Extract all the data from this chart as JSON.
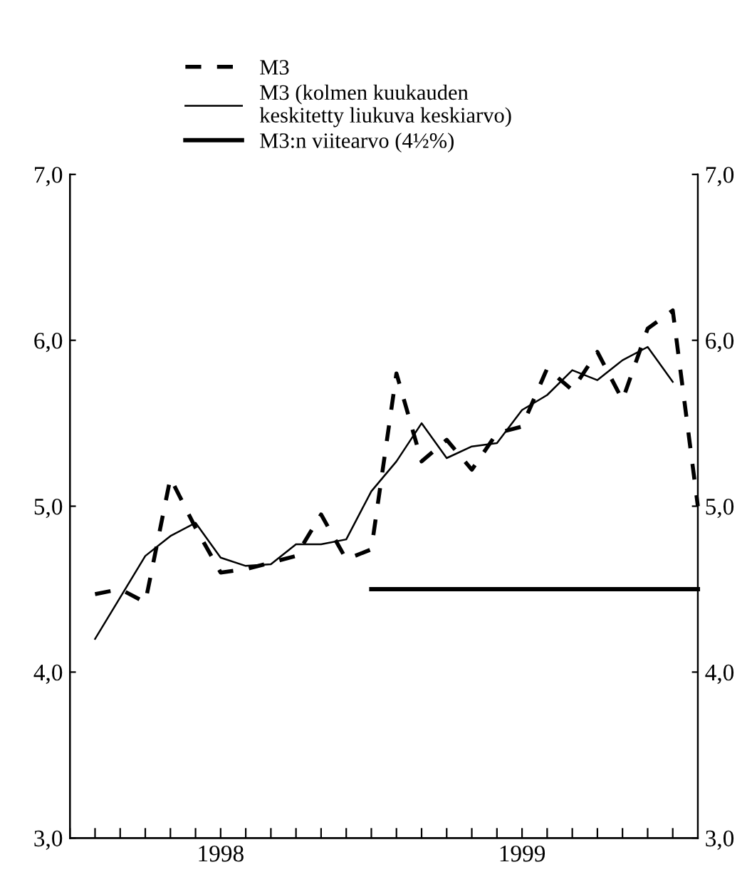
{
  "chart_data": {
    "type": "line",
    "legend": "top left",
    "grid": false,
    "xlim": [
      1998.0,
      2000.0833
    ],
    "xticks": [
      {
        "value": 1998.0,
        "label": null
      },
      {
        "value": 1998.0833,
        "label": null
      },
      {
        "value": 1998.1667,
        "label": null
      },
      {
        "value": 1998.25,
        "label": null
      },
      {
        "value": 1998.3333,
        "label": null
      },
      {
        "value": 1998.4167,
        "label": null
      },
      {
        "value": 1998.5,
        "label": "1998"
      },
      {
        "value": 1998.5833,
        "label": null
      },
      {
        "value": 1998.6667,
        "label": null
      },
      {
        "value": 1998.75,
        "label": null
      },
      {
        "value": 1998.8333,
        "label": null
      },
      {
        "value": 1998.9167,
        "label": null
      },
      {
        "value": 1999.0,
        "label": null
      },
      {
        "value": 1999.0833,
        "label": null
      },
      {
        "value": 1999.1667,
        "label": null
      },
      {
        "value": 1999.25,
        "label": null
      },
      {
        "value": 1999.3333,
        "label": null
      },
      {
        "value": 1999.4167,
        "label": null
      },
      {
        "value": 1999.5,
        "label": "1999"
      },
      {
        "value": 1999.5833,
        "label": null
      },
      {
        "value": 1999.6667,
        "label": null
      },
      {
        "value": 1999.75,
        "label": null
      },
      {
        "value": 1999.8333,
        "label": null
      },
      {
        "value": 1999.9167,
        "label": null
      },
      {
        "value": 2000.0,
        "label": null
      }
    ],
    "ylim": [
      3.0,
      7.0
    ],
    "yticks": [
      {
        "value": 3,
        "label": "3,0"
      },
      {
        "value": 4,
        "label": "4,0"
      },
      {
        "value": 5,
        "label": "5,0"
      },
      {
        "value": 6,
        "label": "6,0"
      },
      {
        "value": 7,
        "label": "7,0"
      }
    ],
    "y2lim": [
      3.0,
      7.0
    ],
    "y2ticks": [
      {
        "value": 3,
        "label": "3,0"
      },
      {
        "value": 4,
        "label": "4,0"
      },
      {
        "value": 5,
        "label": "5,0"
      },
      {
        "value": 6,
        "label": "6,0"
      },
      {
        "value": 7,
        "label": "7,0"
      }
    ],
    "series": [
      {
        "name": "M3",
        "color": "#000000",
        "line_style": "dashed",
        "x": [
          1998.0833,
          1998.1667,
          1998.25,
          1998.3333,
          1998.4167,
          1998.5,
          1998.5833,
          1998.6667,
          1998.75,
          1998.8333,
          1998.9167,
          1999.0,
          1999.0833,
          1999.1667,
          1999.25,
          1999.3333,
          1999.4167,
          1999.5,
          1999.5833,
          1999.6667,
          1999.75,
          1999.8333,
          1999.9167,
          2000.0,
          2000.0833
        ],
        "values": [
          4.47,
          4.5,
          4.42,
          5.17,
          4.87,
          4.6,
          4.62,
          4.66,
          4.7,
          4.95,
          4.68,
          4.74,
          5.8,
          5.27,
          5.4,
          5.22,
          5.44,
          5.48,
          5.83,
          5.7,
          5.93,
          5.64,
          6.07,
          6.18,
          5.0
        ]
      },
      {
        "name": "M3 (kolmen kuukauden\nkeskitetty liukuva keskiarvo)",
        "color": "#000000",
        "line_style": "solid",
        "x": [
          1998.0833,
          1998.1667,
          1998.25,
          1998.3333,
          1998.4167,
          1998.5,
          1998.5833,
          1998.6667,
          1998.75,
          1998.8333,
          1998.9167,
          1999.0,
          1999.0833,
          1999.1667,
          1999.25,
          1999.3333,
          1999.4167,
          1999.5,
          1999.5833,
          1999.6667,
          1999.75,
          1999.8333,
          1999.9167,
          2000.0
        ],
        "values": [
          4.2,
          4.45,
          4.7,
          4.82,
          4.9,
          4.69,
          4.64,
          4.65,
          4.77,
          4.77,
          4.8,
          5.09,
          5.27,
          5.5,
          5.29,
          5.36,
          5.38,
          5.58,
          5.67,
          5.82,
          5.76,
          5.88,
          5.96,
          5.75
        ]
      },
      {
        "name": "M3:n viitearvo (4½%)",
        "color": "#000000",
        "line_style": "solid",
        "x": [
          1999.0,
          2000.0833
        ],
        "values": [
          4.5,
          4.5
        ]
      }
    ]
  }
}
